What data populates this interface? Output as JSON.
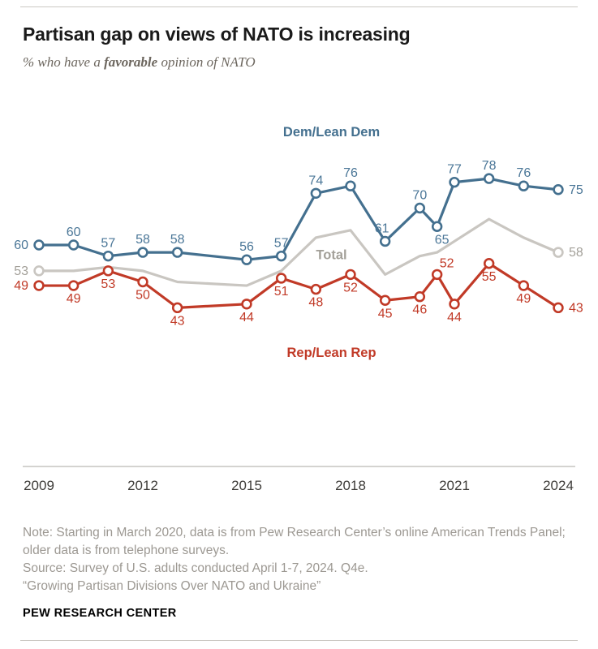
{
  "header": {
    "title": "Partisan gap on views of NATO is increasing",
    "subtitle": {
      "prefix": "% who have a ",
      "emphasis": "favorable",
      "suffix": " opinion of NATO"
    }
  },
  "chart_data": {
    "type": "line",
    "x": [
      2009,
      2010,
      2011,
      2012,
      2013,
      2015,
      2016,
      2017,
      2018,
      2019,
      2020,
      2020.5,
      2021,
      2022,
      2023,
      2024
    ],
    "xlim": [
      2009,
      2024
    ],
    "x_ticks": [
      "2009",
      "2012",
      "2015",
      "2018",
      "2021",
      "2024"
    ],
    "ylim": [
      0,
      100
    ],
    "grid": false,
    "legend": "inline-annotations",
    "series": [
      {
        "name": "Dem/Lean Dem",
        "slug": "dem",
        "color": "#44708f",
        "label_color": "#4a7697",
        "values": [
          60,
          60,
          57,
          58,
          58,
          56,
          57,
          74,
          76,
          61,
          70,
          65,
          77,
          78,
          76,
          75
        ],
        "markers": "all",
        "point_labels": "all"
      },
      {
        "name": "Total",
        "slug": "total",
        "color": "#c9c6c1",
        "label_color": "#a3a099",
        "values": [
          53,
          53,
          54,
          53,
          50,
          49,
          53,
          62,
          64,
          52,
          57,
          58,
          61,
          67,
          62,
          58
        ],
        "markers": "ends",
        "point_labels": "ends",
        "middle_values_estimated": true
      },
      {
        "name": "Rep/Lean Rep",
        "slug": "rep",
        "color": "#c13a27",
        "label_color": "#c13a27",
        "values": [
          49,
          49,
          53,
          50,
          43,
          44,
          51,
          48,
          52,
          45,
          46,
          52,
          44,
          55,
          49,
          43
        ],
        "markers": "all",
        "point_labels": "all"
      }
    ],
    "annotations": [
      {
        "text": "Dem/Lean Dem",
        "slug": "dem",
        "x": 2017.45,
        "y": 89.5,
        "color": "#44708f"
      },
      {
        "text": "Total",
        "slug": "total",
        "x": 2017.45,
        "y": 56.2,
        "color": "#a3a099"
      },
      {
        "text": "Rep/Lean Rep",
        "slug": "rep",
        "x": 2017.45,
        "y": 29.7,
        "color": "#c13a27"
      }
    ]
  },
  "footer": {
    "note": "Note: Starting in March 2020, data is from Pew Research Center’s online American Trends Panel; older data is from telephone surveys.",
    "source": "Source: Survey of U.S. adults conducted April 1-7, 2024. Q4e.",
    "report": "“Growing Partisan Divisions Over NATO and Ukraine”",
    "brand": "PEW RESEARCH CENTER"
  }
}
